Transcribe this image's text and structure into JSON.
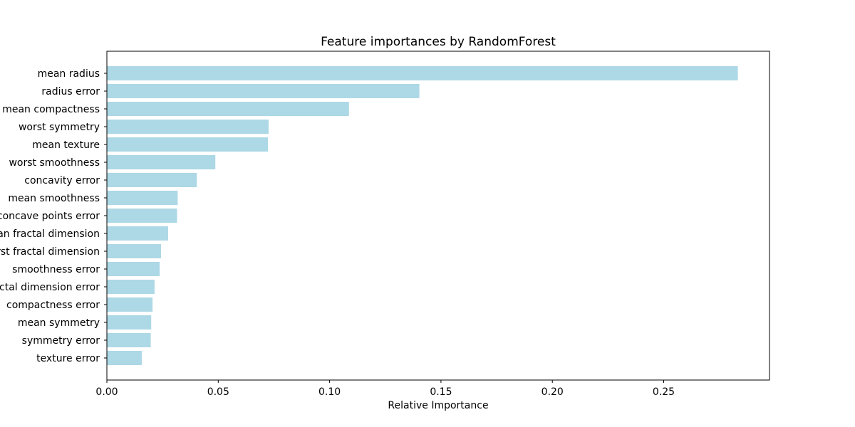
{
  "chart_data": {
    "type": "bar",
    "orientation": "horizontal",
    "title": "Feature importances by RandomForest",
    "xlabel": "Relative Importance",
    "ylabel": "",
    "xlim": [
      0,
      0.2975
    ],
    "xticks": [
      0.0,
      0.05,
      0.1,
      0.15,
      0.2,
      0.25
    ],
    "xtick_labels": [
      "0.00",
      "0.05",
      "0.10",
      "0.15",
      "0.20",
      "0.25"
    ],
    "grid": false,
    "bar_color": "#add8e6",
    "categories": [
      "mean radius",
      "radius error",
      "mean compactness",
      "worst symmetry",
      "mean texture",
      "worst smoothness",
      "concavity error",
      "mean smoothness",
      "concave points error",
      "mean fractal dimension",
      "worst fractal dimension",
      "smoothness error",
      "fractal dimension error",
      "compactness error",
      "mean symmetry",
      "symmetry error",
      "texture error"
    ],
    "values": [
      0.2833,
      0.1403,
      0.1087,
      0.0726,
      0.0723,
      0.0487,
      0.0404,
      0.0318,
      0.0315,
      0.0275,
      0.0243,
      0.0237,
      0.0214,
      0.0205,
      0.0199,
      0.0197,
      0.0157
    ]
  }
}
